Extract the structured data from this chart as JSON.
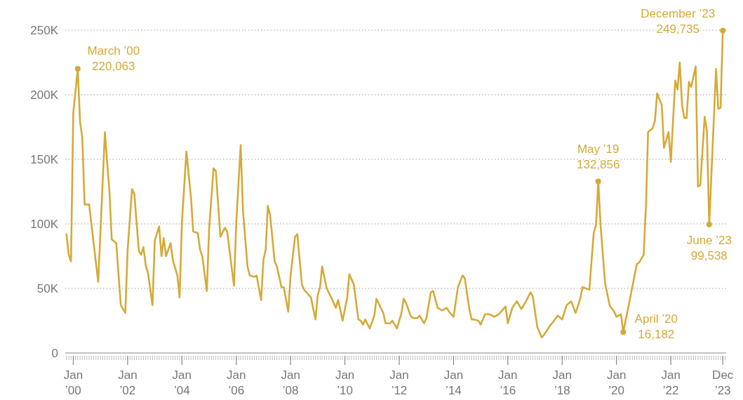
{
  "chart_data": {
    "type": "line",
    "x": [
      "1999-10",
      "1999-11",
      "1999-12",
      "2000-01",
      "2000-03",
      "2000-04",
      "2000-05",
      "2000-06",
      "2000-08",
      "2000-12",
      "2001-03",
      "2001-05",
      "2001-06",
      "2001-08",
      "2001-10",
      "2001-12",
      "2002-01",
      "2002-03",
      "2002-04",
      "2002-06",
      "2002-07",
      "2002-08",
      "2002-09",
      "2002-10",
      "2002-12",
      "2003-01",
      "2003-03",
      "2003-04",
      "2003-05",
      "2003-06",
      "2003-08",
      "2003-09",
      "2003-11",
      "2003-12",
      "2004-01",
      "2004-03",
      "2004-05",
      "2004-06",
      "2004-08",
      "2004-09",
      "2004-10",
      "2004-12",
      "2005-01",
      "2005-03",
      "2005-04",
      "2005-06",
      "2005-08",
      "2005-09",
      "2005-12",
      "2006-01",
      "2006-03",
      "2006-04",
      "2006-06",
      "2006-07",
      "2006-09",
      "2006-10",
      "2006-12",
      "2007-01",
      "2007-02",
      "2007-03",
      "2007-04",
      "2007-06",
      "2007-07",
      "2007-09",
      "2007-10",
      "2007-12",
      "2008-01",
      "2008-03",
      "2008-04",
      "2008-06",
      "2008-07",
      "2008-10",
      "2008-12",
      "2009-01",
      "2009-02",
      "2009-03",
      "2009-05",
      "2009-07",
      "2009-09",
      "2009-10",
      "2009-12",
      "2010-02",
      "2010-03",
      "2010-05",
      "2010-07",
      "2010-08",
      "2010-09",
      "2010-10",
      "2010-12",
      "2011-02",
      "2011-03",
      "2011-06",
      "2011-07",
      "2011-09",
      "2011-10",
      "2011-12",
      "2012-02",
      "2012-03",
      "2012-04",
      "2012-06",
      "2012-07",
      "2012-09",
      "2012-10",
      "2012-12",
      "2013-01",
      "2013-03",
      "2013-04",
      "2013-06",
      "2013-08",
      "2013-10",
      "2013-11",
      "2014-01",
      "2014-03",
      "2014-05",
      "2014-06",
      "2014-08",
      "2014-09",
      "2014-10",
      "2014-12",
      "2015-01",
      "2015-03",
      "2015-05",
      "2015-07",
      "2015-09",
      "2015-10",
      "2015-12",
      "2016-01",
      "2016-03",
      "2016-05",
      "2016-07",
      "2016-09",
      "2016-11",
      "2016-12",
      "2017-02",
      "2017-04",
      "2017-05",
      "2017-08",
      "2017-09",
      "2017-11",
      "2018-01",
      "2018-03",
      "2018-05",
      "2018-07",
      "2018-09",
      "2018-10",
      "2019-01",
      "2019-03",
      "2019-04",
      "2019-05",
      "2019-06",
      "2019-08",
      "2019-10",
      "2019-12",
      "2020-01",
      "2020-03",
      "2020-04",
      "2020-07",
      "2020-10",
      "2020-11",
      "2021-01",
      "2021-02",
      "2021-03",
      "2021-05",
      "2021-06",
      "2021-07",
      "2021-09",
      "2021-10",
      "2021-12",
      "2022-01",
      "2022-03",
      "2022-04",
      "2022-05",
      "2022-06",
      "2022-07",
      "2022-08",
      "2022-09",
      "2022-10",
      "2022-12",
      "2023-01",
      "2023-02",
      "2023-04",
      "2023-05",
      "2023-06",
      "2023-09",
      "2023-10",
      "2023-11",
      "2023-12"
    ],
    "series": [
      {
        "color": "#d4aa38",
        "values": [
          92000,
          76000,
          71000,
          186000,
          220063,
          179000,
          167000,
          115000,
          115000,
          55000,
          171000,
          125000,
          88000,
          85000,
          37000,
          31000,
          80000,
          127000,
          123000,
          79000,
          76000,
          82000,
          68000,
          62000,
          37000,
          87000,
          98000,
          75000,
          89000,
          75000,
          85000,
          72000,
          60000,
          43000,
          101000,
          156000,
          121000,
          94000,
          93000,
          80000,
          75000,
          48000,
          96000,
          143000,
          141000,
          90000,
          97000,
          94000,
          52000,
          101000,
          161000,
          110000,
          67000,
          60000,
          59000,
          60000,
          41000,
          72000,
          80000,
          114000,
          107000,
          71000,
          67000,
          51000,
          51000,
          32000,
          60000,
          90000,
          92000,
          53000,
          49000,
          43000,
          26000,
          45000,
          51000,
          67000,
          50000,
          43000,
          35000,
          41000,
          25000,
          43000,
          61000,
          53000,
          26000,
          25000,
          22000,
          26000,
          19000,
          29000,
          42000,
          31000,
          23000,
          23000,
          25000,
          19000,
          31000,
          42000,
          39000,
          29000,
          27000,
          27000,
          29000,
          23000,
          27000,
          47000,
          48000,
          35000,
          33000,
          35000,
          32000,
          28000,
          51000,
          60000,
          58000,
          34000,
          26000,
          26000,
          25000,
          22000,
          30000,
          30000,
          28000,
          30000,
          32000,
          36000,
          23000,
          35000,
          40000,
          34000,
          40000,
          47000,
          44000,
          20000,
          12000,
          14000,
          22000,
          24000,
          29000,
          26000,
          37000,
          40000,
          31000,
          42000,
          51000,
          49000,
          93000,
          99000,
          132856,
          99000,
          54000,
          37000,
          32000,
          28000,
          30000,
          16182,
          42000,
          69000,
          70000,
          76000,
          115000,
          171000,
          174000,
          180000,
          201000,
          192000,
          159000,
          171000,
          148000,
          211000,
          204000,
          225000,
          192000,
          182000,
          182000,
          210000,
          206000,
          222000,
          129000,
          130000,
          183000,
          172000,
          99538,
          220000,
          189000,
          190000,
          249735
        ]
      }
    ],
    "xlim": [
      "1999-09-15",
      "2024-01-15"
    ],
    "xticks": [
      {
        "value": "2000-01",
        "label": "Jan\n’00"
      },
      {
        "value": "2002-01",
        "label": "Jan\n’02"
      },
      {
        "value": "2004-01",
        "label": "Jan\n’04"
      },
      {
        "value": "2006-01",
        "label": "Jan\n’06"
      },
      {
        "value": "2008-01",
        "label": "Jan\n’08"
      },
      {
        "value": "2010-01",
        "label": "Jan\n’10"
      },
      {
        "value": "2012-01",
        "label": "Jan\n’12"
      },
      {
        "value": "2014-01",
        "label": "Jan\n’14"
      },
      {
        "value": "2016-01",
        "label": "Jan\n’16"
      },
      {
        "value": "2018-01",
        "label": "Jan\n’18"
      },
      {
        "value": "2020-01",
        "label": "Jan\n’20"
      },
      {
        "value": "2022-01",
        "label": "Jan\n’22"
      },
      {
        "value": "2023-12",
        "label": "Dec\n’23"
      }
    ],
    "ylim": [
      0,
      250000
    ],
    "yticks": [
      0,
      {
        "value": 50000,
        "label": "50K"
      },
      {
        "value": 100000,
        "label": "100K"
      },
      {
        "value": 150000,
        "label": "150K"
      },
      {
        "value": 200000,
        "label": "200K"
      },
      {
        "value": 250000,
        "label": "250K"
      }
    ],
    "grid": "y",
    "annotations": [
      {
        "text": "March ’00\n220,063",
        "x": "2000-03",
        "y": 220063
      },
      {
        "text": "May ’19\n132,856",
        "x": "2019-05",
        "y": 132856
      },
      {
        "text": "April ’20\n16,182",
        "x": "2020-04",
        "y": 16182
      },
      {
        "text": "June ’23\n99,538",
        "x": "2023-06",
        "y": 99538
      },
      {
        "text": "December ’23\n249,735",
        "x": "2023-12",
        "y": 249735
      }
    ]
  }
}
